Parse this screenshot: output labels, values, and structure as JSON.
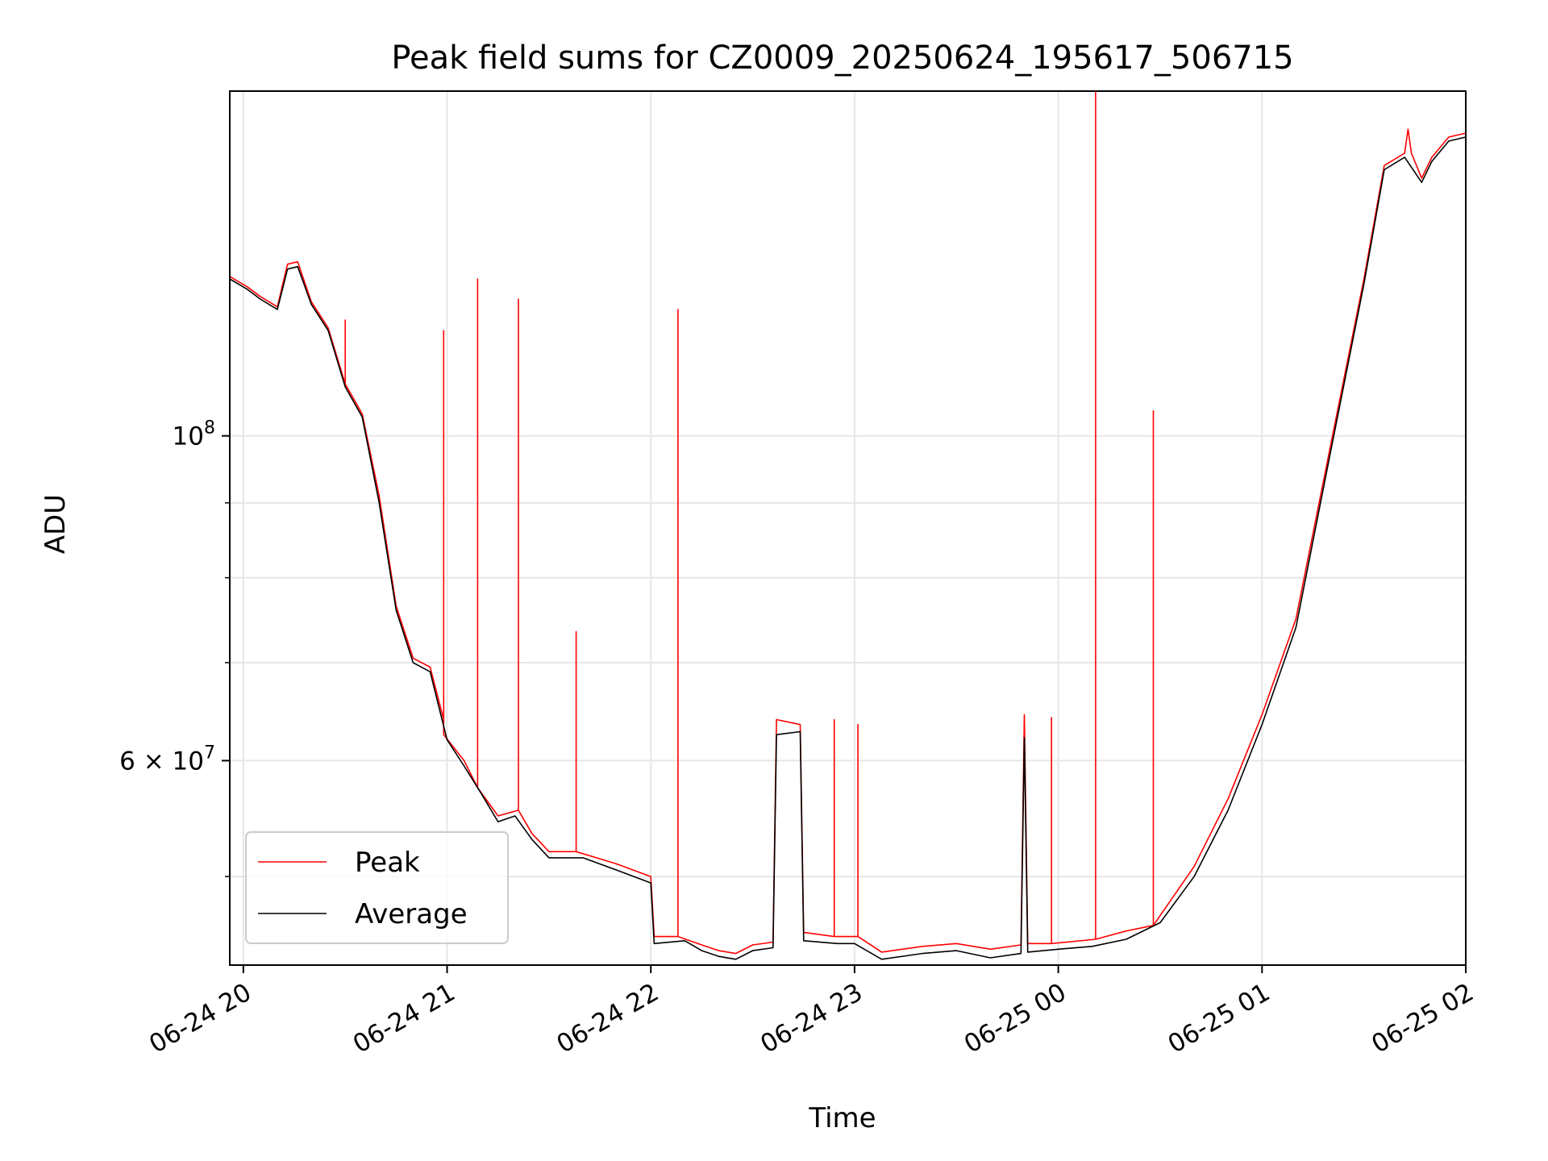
{
  "chart_data": {
    "type": "line",
    "title": "Peak field sums for CZ0009_20250624_195617_506715",
    "xlabel": "Time",
    "ylabel": "ADU",
    "x_scale": "time",
    "y_scale": "log",
    "xlim": [
      "2025-06-24T19:56",
      "2025-06-25T02:00"
    ],
    "ylim": [
      43500000,
      172000000
    ],
    "grid": true,
    "legend": "lower-left",
    "x_ticks": [
      {
        "t": "2025-06-24T20:00",
        "label": "06-24 20"
      },
      {
        "t": "2025-06-24T21:00",
        "label": "06-24 21"
      },
      {
        "t": "2025-06-24T22:00",
        "label": "06-24 22"
      },
      {
        "t": "2025-06-24T23:00",
        "label": "06-24 23"
      },
      {
        "t": "2025-06-25T00:00",
        "label": "06-25 00"
      },
      {
        "t": "2025-06-25T01:00",
        "label": "06-25 01"
      },
      {
        "t": "2025-06-25T02:00",
        "label": "06-25 02"
      }
    ],
    "y_major_ticks": [
      {
        "v": 100000000,
        "label_base": "10",
        "label_exp": "8"
      },
      {
        "v": 60000000,
        "label_base": "6 × 10",
        "label_exp": "7"
      }
    ],
    "y_minor_ticks": [
      50000000,
      70000000,
      80000000,
      90000000
    ],
    "series": [
      {
        "name": "Average",
        "color": "#000000",
        "points": [
          [
            "2025-06-24T19:56",
            128000000
          ],
          [
            "2025-06-24T20:01",
            126000000
          ],
          [
            "2025-06-24T20:05",
            124000000
          ],
          [
            "2025-06-24T20:10",
            122000000
          ],
          [
            "2025-06-24T20:13",
            130000000
          ],
          [
            "2025-06-24T20:16",
            130500000
          ],
          [
            "2025-06-24T20:20",
            123000000
          ],
          [
            "2025-06-24T20:25",
            118000000
          ],
          [
            "2025-06-24T20:30",
            108000000
          ],
          [
            "2025-06-24T20:35",
            103000000
          ],
          [
            "2025-06-24T20:40",
            90000000
          ],
          [
            "2025-06-24T20:45",
            76000000
          ],
          [
            "2025-06-24T20:50",
            70000000
          ],
          [
            "2025-06-24T20:55",
            69000000
          ],
          [
            "2025-06-24T21:00",
            62000000
          ],
          [
            "2025-06-24T21:05",
            59500000
          ],
          [
            "2025-06-24T21:10",
            57000000
          ],
          [
            "2025-06-24T21:15",
            54500000
          ],
          [
            "2025-06-24T21:20",
            55000000
          ],
          [
            "2025-06-24T21:25",
            53000000
          ],
          [
            "2025-06-24T21:30",
            51500000
          ],
          [
            "2025-06-24T21:40",
            51500000
          ],
          [
            "2025-06-24T21:50",
            50500000
          ],
          [
            "2025-06-24T22:00",
            49500000
          ],
          [
            "2025-06-24T22:01",
            45000000
          ],
          [
            "2025-06-24T22:10",
            45200000
          ],
          [
            "2025-06-24T22:15",
            44500000
          ],
          [
            "2025-06-24T22:20",
            44100000
          ],
          [
            "2025-06-24T22:25",
            43900000
          ],
          [
            "2025-06-24T22:30",
            44500000
          ],
          [
            "2025-06-24T22:36",
            44700000
          ],
          [
            "2025-06-24T22:37",
            62500000
          ],
          [
            "2025-06-24T22:44",
            62800000
          ],
          [
            "2025-06-24T22:45",
            45200000
          ],
          [
            "2025-06-24T22:55",
            45000000
          ],
          [
            "2025-06-24T23:00",
            45000000
          ],
          [
            "2025-06-24T23:08",
            43900000
          ],
          [
            "2025-06-24T23:20",
            44300000
          ],
          [
            "2025-06-24T23:30",
            44500000
          ],
          [
            "2025-06-24T23:40",
            44000000
          ],
          [
            "2025-06-24T23:49",
            44300000
          ],
          [
            "2025-06-24T23:50",
            62200000
          ],
          [
            "2025-06-24T23:51",
            44400000
          ],
          [
            "2025-06-25T00:00",
            44600000
          ],
          [
            "2025-06-25T00:10",
            44800000
          ],
          [
            "2025-06-25T00:20",
            45300000
          ],
          [
            "2025-06-25T00:30",
            46500000
          ],
          [
            "2025-06-25T00:40",
            50000000
          ],
          [
            "2025-06-25T00:50",
            55500000
          ],
          [
            "2025-06-25T01:00",
            63500000
          ],
          [
            "2025-06-25T01:10",
            74000000
          ],
          [
            "2025-06-25T01:20",
            97000000
          ],
          [
            "2025-06-25T01:30",
            127000000
          ],
          [
            "2025-06-25T01:36",
            152000000
          ],
          [
            "2025-06-25T01:42",
            155000000
          ],
          [
            "2025-06-25T01:47",
            149000000
          ],
          [
            "2025-06-25T01:50",
            154000000
          ],
          [
            "2025-06-25T01:55",
            159000000
          ],
          [
            "2025-06-25T02:00",
            160000000
          ]
        ]
      },
      {
        "name": "Peak",
        "color": "#ff0000",
        "points": [
          [
            "2025-06-24T19:56",
            128500000
          ],
          [
            "2025-06-24T20:01",
            126500000
          ],
          [
            "2025-06-24T20:05",
            124500000
          ],
          [
            "2025-06-24T20:10",
            122500000
          ],
          [
            "2025-06-24T20:13",
            131000000
          ],
          [
            "2025-06-24T20:16",
            131500000
          ],
          [
            "2025-06-24T20:20",
            123500000
          ],
          [
            "2025-06-24T20:25",
            118500000
          ],
          [
            "2025-06-24T20:30",
            108500000
          ],
          [
            "2025-06-24T20:30",
            120000000
          ],
          [
            "2025-06-24T20:30",
            108500000
          ],
          [
            "2025-06-24T20:35",
            103500000
          ],
          [
            "2025-06-24T20:40",
            91000000
          ],
          [
            "2025-06-24T20:45",
            76500000
          ],
          [
            "2025-06-24T20:50",
            70500000
          ],
          [
            "2025-06-24T20:55",
            69500000
          ],
          [
            "2025-06-24T20:59",
            64000000
          ],
          [
            "2025-06-24T20:59",
            118000000
          ],
          [
            "2025-06-24T20:59",
            62500000
          ],
          [
            "2025-06-24T21:05",
            60000000
          ],
          [
            "2025-06-24T21:09",
            57500000
          ],
          [
            "2025-06-24T21:09",
            128000000
          ],
          [
            "2025-06-24T21:09",
            57500000
          ],
          [
            "2025-06-24T21:15",
            55000000
          ],
          [
            "2025-06-24T21:21",
            55500000
          ],
          [
            "2025-06-24T21:21",
            124000000
          ],
          [
            "2025-06-24T21:21",
            55500000
          ],
          [
            "2025-06-24T21:25",
            53500000
          ],
          [
            "2025-06-24T21:30",
            52000000
          ],
          [
            "2025-06-24T21:38",
            52000000
          ],
          [
            "2025-06-24T21:38",
            73500000
          ],
          [
            "2025-06-24T21:38",
            52000000
          ],
          [
            "2025-06-24T21:50",
            51000000
          ],
          [
            "2025-06-24T22:00",
            50000000
          ],
          [
            "2025-06-24T22:01",
            45500000
          ],
          [
            "2025-06-24T22:08",
            45500000
          ],
          [
            "2025-06-24T22:08",
            122000000
          ],
          [
            "2025-06-24T22:08",
            45500000
          ],
          [
            "2025-06-24T22:15",
            44900000
          ],
          [
            "2025-06-24T22:20",
            44500000
          ],
          [
            "2025-06-24T22:25",
            44300000
          ],
          [
            "2025-06-24T22:30",
            44900000
          ],
          [
            "2025-06-24T22:36",
            45100000
          ],
          [
            "2025-06-24T22:37",
            64000000
          ],
          [
            "2025-06-24T22:44",
            63500000
          ],
          [
            "2025-06-24T22:45",
            45800000
          ],
          [
            "2025-06-24T22:54",
            45500000
          ],
          [
            "2025-06-24T22:54",
            64000000
          ],
          [
            "2025-06-24T22:54",
            45500000
          ],
          [
            "2025-06-24T23:01",
            45500000
          ],
          [
            "2025-06-24T23:01",
            63500000
          ],
          [
            "2025-06-24T23:01",
            45500000
          ],
          [
            "2025-06-24T23:08",
            44400000
          ],
          [
            "2025-06-24T23:20",
            44800000
          ],
          [
            "2025-06-24T23:30",
            45000000
          ],
          [
            "2025-06-24T23:40",
            44600000
          ],
          [
            "2025-06-24T23:49",
            44900000
          ],
          [
            "2025-06-24T23:50",
            64500000
          ],
          [
            "2025-06-24T23:51",
            45000000
          ],
          [
            "2025-06-24T23:58",
            45000000
          ],
          [
            "2025-06-24T23:58",
            64200000
          ],
          [
            "2025-06-24T23:58",
            45000000
          ],
          [
            "2025-06-25T00:11",
            45300000
          ],
          [
            "2025-06-25T00:11",
            172000000
          ],
          [
            "2025-06-25T00:11",
            45300000
          ],
          [
            "2025-06-25T00:20",
            45900000
          ],
          [
            "2025-06-25T00:28",
            46300000
          ],
          [
            "2025-06-25T00:28",
            104000000
          ],
          [
            "2025-06-25T00:28",
            46300000
          ],
          [
            "2025-06-25T00:40",
            50800000
          ],
          [
            "2025-06-25T00:50",
            56500000
          ],
          [
            "2025-06-25T01:00",
            64500000
          ],
          [
            "2025-06-25T01:10",
            75000000
          ],
          [
            "2025-06-25T01:20",
            98000000
          ],
          [
            "2025-06-25T01:30",
            128000000
          ],
          [
            "2025-06-25T01:36",
            153000000
          ],
          [
            "2025-06-25T01:42",
            156000000
          ],
          [
            "2025-06-25T01:43",
            162000000
          ],
          [
            "2025-06-25T01:44",
            156000000
          ],
          [
            "2025-06-25T01:47",
            150000000
          ],
          [
            "2025-06-25T01:50",
            155000000
          ],
          [
            "2025-06-25T01:55",
            160000000
          ],
          [
            "2025-06-25T02:00",
            161000000
          ]
        ]
      }
    ],
    "legend_order": [
      "Peak",
      "Average"
    ]
  }
}
